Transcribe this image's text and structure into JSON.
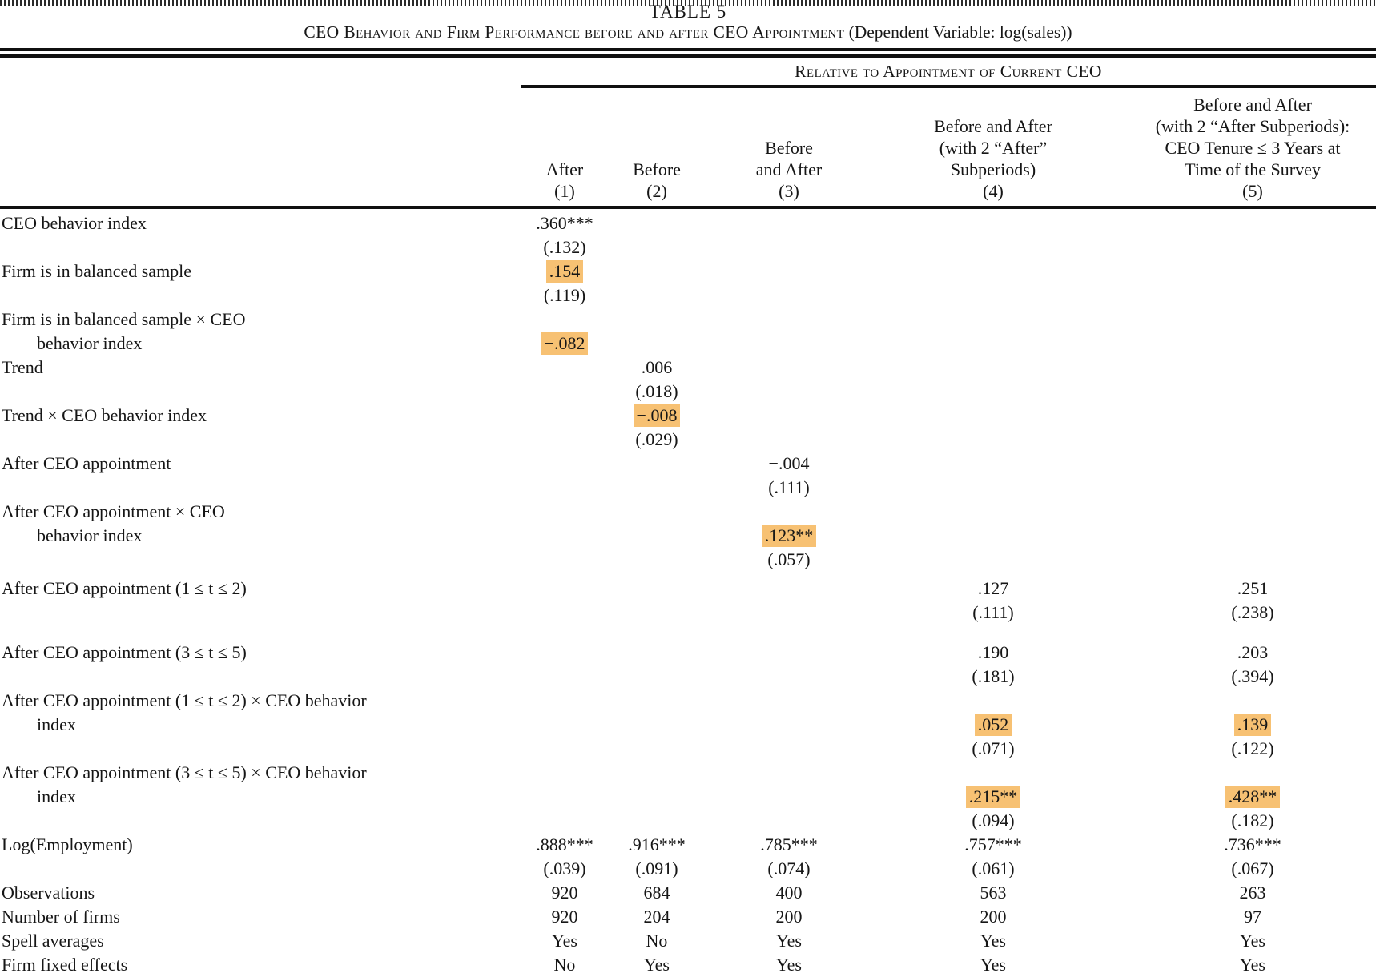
{
  "page": {
    "title": "TABLE 5",
    "caption_smallcaps": "CEO Behavior and Firm Performance before and after CEO Appointment",
    "caption_suffix": " (Dependent Variable: log(sales))",
    "spanner": "Relative to Appointment of Current CEO",
    "highlight_color": "#f7c173",
    "text_color": "#161616"
  },
  "table": {
    "columns": [
      {
        "header_lines": [
          "After"
        ],
        "num": "(1)"
      },
      {
        "header_lines": [
          "Before"
        ],
        "num": "(2)"
      },
      {
        "header_lines": [
          "Before",
          "and After"
        ],
        "num": "(3)"
      },
      {
        "header_lines": [
          "Before and After",
          "(with 2 “After”",
          "Subperiods)"
        ],
        "num": "(4)"
      },
      {
        "header_lines": [
          "Before and After",
          "(with 2 “After Subperiods):",
          "CEO Tenure ≤ 3 Years at",
          "Time of the Survey"
        ],
        "num": "(5)"
      }
    ],
    "lines": [
      {
        "label": "CEO behavior index",
        "cells": {
          "c1": {
            "t": ".360***"
          }
        }
      },
      {
        "cells": {
          "c1": {
            "t": "(.132)"
          }
        }
      },
      {
        "label": "Firm is in balanced sample",
        "cells": {
          "c1": {
            "t": ".154",
            "hl": true
          }
        }
      },
      {
        "cells": {
          "c1": {
            "t": "(.119)"
          }
        }
      },
      {
        "label": "Firm is in balanced sample × CEO"
      },
      {
        "label": "behavior index",
        "indent": true,
        "cells": {
          "c1": {
            "t": "−.082",
            "hl": true
          }
        }
      },
      {
        "label": "Trend",
        "cells": {
          "c2": {
            "t": ".006"
          }
        }
      },
      {
        "cells": {
          "c2": {
            "t": "(.018)"
          }
        }
      },
      {
        "label": "Trend × CEO behavior index",
        "cells": {
          "c2": {
            "t": "−.008",
            "hl": true
          }
        }
      },
      {
        "cells": {
          "c2": {
            "t": "(.029)"
          }
        }
      },
      {
        "label": "After CEO appointment",
        "cells": {
          "c3": {
            "t": "−.004"
          }
        }
      },
      {
        "cells": {
          "c3": {
            "t": "(.111)"
          }
        }
      },
      {
        "label": "After CEO appointment × CEO"
      },
      {
        "label": "behavior index",
        "indent": true,
        "cells": {
          "c3": {
            "t": ".123**",
            "hl": true
          }
        }
      },
      {
        "cells": {
          "c3": {
            "t": "(.057)"
          }
        }
      },
      {
        "label": "After CEO appointment (1 ≤ t ≤ 2)",
        "gap": "sm",
        "cells": {
          "c4": {
            "t": ".127"
          },
          "c5": {
            "t": ".251"
          }
        }
      },
      {
        "cells": {
          "c4": {
            "t": "(.111)"
          },
          "c5": {
            "t": "(.238)"
          }
        }
      },
      {
        "label": "After CEO appointment (3 ≤ t ≤ 5)",
        "gap": "lg",
        "cells": {
          "c4": {
            "t": ".190"
          },
          "c5": {
            "t": ".203"
          }
        }
      },
      {
        "cells": {
          "c4": {
            "t": "(.181)"
          },
          "c5": {
            "t": "(.394)"
          }
        }
      },
      {
        "label": "After CEO appointment (1 ≤ t ≤ 2) × CEO behavior"
      },
      {
        "label": "index",
        "indent": true,
        "cells": {
          "c4": {
            "t": ".052",
            "hl": true
          },
          "c5": {
            "t": ".139",
            "hl": true
          }
        }
      },
      {
        "cells": {
          "c4": {
            "t": "(.071)"
          },
          "c5": {
            "t": "(.122)"
          }
        }
      },
      {
        "label": "After CEO appointment (3 ≤ t ≤ 5) × CEO behavior"
      },
      {
        "label": "index",
        "indent": true,
        "cells": {
          "c4": {
            "t": ".215**",
            "hl": true
          },
          "c5": {
            "t": ".428**",
            "hl": true
          }
        }
      },
      {
        "cells": {
          "c4": {
            "t": "(.094)"
          },
          "c5": {
            "t": "(.182)"
          }
        }
      },
      {
        "label": "Log(Employment)",
        "cells": {
          "c1": {
            "t": ".888***"
          },
          "c2": {
            "t": ".916***"
          },
          "c3": {
            "t": ".785***"
          },
          "c4": {
            "t": ".757***"
          },
          "c5": {
            "t": ".736***"
          }
        }
      },
      {
        "cells": {
          "c1": {
            "t": "(.039)"
          },
          "c2": {
            "t": "(.091)"
          },
          "c3": {
            "t": "(.074)"
          },
          "c4": {
            "t": "(.061)"
          },
          "c5": {
            "t": "(.067)"
          }
        }
      },
      {
        "label": "Observations",
        "cells": {
          "c1": {
            "t": "920"
          },
          "c2": {
            "t": "684"
          },
          "c3": {
            "t": "400"
          },
          "c4": {
            "t": "563"
          },
          "c5": {
            "t": "263"
          }
        }
      },
      {
        "label": "Number of firms",
        "cells": {
          "c1": {
            "t": "920"
          },
          "c2": {
            "t": "204"
          },
          "c3": {
            "t": "200"
          },
          "c4": {
            "t": "200"
          },
          "c5": {
            "t": "97"
          }
        }
      },
      {
        "label": "Spell averages",
        "cells": {
          "c1": {
            "t": "Yes"
          },
          "c2": {
            "t": "No"
          },
          "c3": {
            "t": "Yes"
          },
          "c4": {
            "t": "Yes"
          },
          "c5": {
            "t": "Yes"
          }
        }
      },
      {
        "label": "Firm fixed effects",
        "cells": {
          "c1": {
            "t": "No"
          },
          "c2": {
            "t": "Yes"
          },
          "c3": {
            "t": "Yes"
          },
          "c4": {
            "t": "Yes"
          },
          "c5": {
            "t": "Yes"
          }
        }
      }
    ]
  }
}
